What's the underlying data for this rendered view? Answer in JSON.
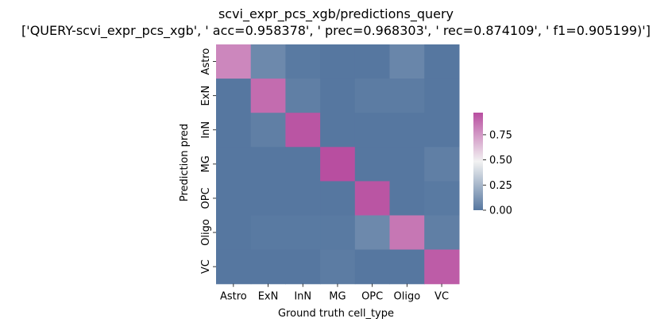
{
  "chart_data": {
    "type": "heatmap",
    "title_line1": "scvi_expr_pcs_xgb/predictions_query",
    "title_line2": "['QUERY-scvi_expr_pcs_xgb', ' acc=0.958378', '  prec=0.968303', ' rec=0.874109', ' f1=0.905199)']",
    "xlabel": "Ground truth cell_type",
    "ylabel": "Prediction pred",
    "x_categories": [
      "Astro",
      "ExN",
      "InN",
      "MG",
      "OPC",
      "Oligo",
      "VC"
    ],
    "y_categories": [
      "Astro",
      "ExN",
      "InN",
      "MG",
      "OPC",
      "Oligo",
      "VC"
    ],
    "values": [
      [
        0.8,
        0.07,
        0.01,
        0.0,
        0.0,
        0.06,
        0.0
      ],
      [
        0.0,
        0.88,
        0.03,
        0.0,
        0.02,
        0.02,
        0.0
      ],
      [
        0.0,
        0.03,
        0.95,
        0.0,
        0.0,
        0.0,
        0.0
      ],
      [
        0.0,
        0.0,
        0.0,
        0.97,
        0.0,
        0.0,
        0.03
      ],
      [
        0.0,
        0.0,
        0.0,
        0.0,
        0.95,
        0.0,
        0.01
      ],
      [
        0.0,
        0.01,
        0.01,
        0.01,
        0.07,
        0.85,
        0.03
      ],
      [
        0.0,
        0.0,
        0.0,
        0.02,
        0.0,
        0.0,
        0.93
      ]
    ],
    "colorbar": {
      "vmin": 0.0,
      "vmax": 0.97,
      "ticks": [
        0.0,
        0.25,
        0.5,
        0.75
      ],
      "tick_labels": [
        "0.00",
        "0.25",
        "0.50",
        "0.75"
      ],
      "colors": {
        "low": "#5677a0",
        "mid": "#f2f2f2",
        "high": "#b84ea0"
      }
    }
  }
}
